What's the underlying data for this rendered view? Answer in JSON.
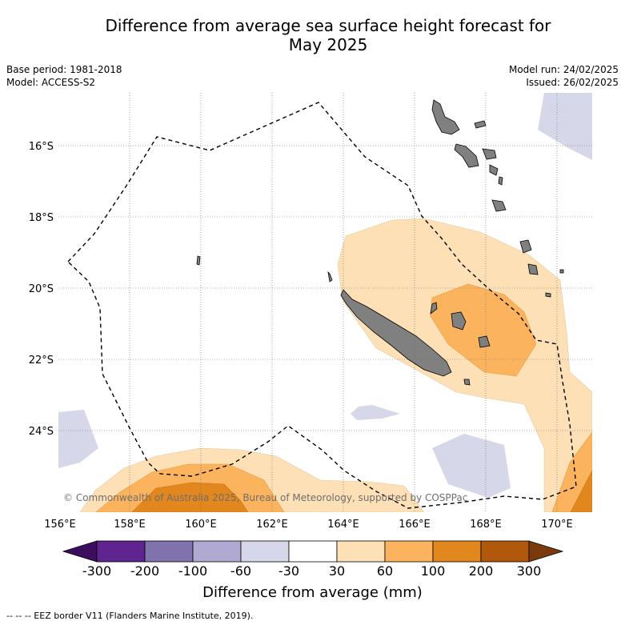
{
  "title": {
    "line1": "Difference from average sea surface height forecast for",
    "line2": "May 2025"
  },
  "meta": {
    "base_period": "Base period: 1981-2018",
    "model": "Model: ACCESS-S2",
    "model_run": "Model run: 24/02/2025",
    "issued": "Issued: 26/02/2025"
  },
  "map": {
    "lon_range": [
      156,
      171
    ],
    "lat_range": [
      -26.3,
      -14.2
    ],
    "lon_ticks": [
      "156°E",
      "158°E",
      "160°E",
      "162°E",
      "164°E",
      "166°E",
      "168°E",
      "170°E"
    ],
    "lat_ticks": [
      "16°S",
      "18°S",
      "20°S",
      "22°S",
      "24°S"
    ],
    "copyright": "© Commonwealth of Australia 2025, Bureau of Meteorology, supported by COSPPac",
    "colors": {
      "land": "#808080",
      "c_neg60_neg30": "#d7d7ea",
      "c_30_60": "#fde0b6",
      "c_60_100": "#fbb45d",
      "c_100_200": "#e2861e",
      "eez_line": "#000000"
    }
  },
  "colorbar": {
    "labels": [
      "-300",
      "-200",
      "-100",
      "-60",
      "-30",
      "30",
      "60",
      "100",
      "200",
      "300"
    ],
    "colors": [
      "#3d0d5e",
      "#5e2590",
      "#8072ad",
      "#b0a9d2",
      "#d7d7ea",
      "#ffffff",
      "#fde0b6",
      "#fbb45d",
      "#e2861e",
      "#b0580b",
      "#7b3a0b"
    ],
    "title": "Difference from average (mm)"
  },
  "footer": "--  --  -- EEZ border V11 (Flanders Marine Institute, 2019)."
}
